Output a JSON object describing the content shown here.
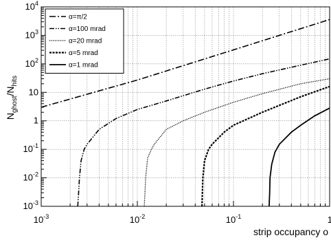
{
  "chart_data": {
    "type": "line",
    "xlabel": "strip occupancy o",
    "ylabel_main": "N",
    "ylabel_sub1": "ghost",
    "ylabel_sep": "/N",
    "ylabel_sub2": "hits",
    "x_scale": "log",
    "y_scale": "log",
    "xlim": [
      0.001,
      1
    ],
    "ylim": [
      0.001,
      10000
    ],
    "grid": true,
    "legend_position": "top-left",
    "x_ticks": [
      {
        "value": 0.001,
        "base": "10",
        "exp": "-3"
      },
      {
        "value": 0.01,
        "base": "10",
        "exp": "-2"
      },
      {
        "value": 0.1,
        "base": "10",
        "exp": "-1"
      },
      {
        "value": 1,
        "base": "1",
        "exp": ""
      }
    ],
    "y_ticks": [
      {
        "value": 10000,
        "base": "10",
        "exp": "4"
      },
      {
        "value": 1000,
        "base": "10",
        "exp": "3"
      },
      {
        "value": 100,
        "base": "10",
        "exp": "2"
      },
      {
        "value": 10,
        "base": "10",
        "exp": ""
      },
      {
        "value": 1,
        "base": "1",
        "exp": ""
      },
      {
        "value": 0.1,
        "base": "10",
        "exp": "-1"
      },
      {
        "value": 0.01,
        "base": "10",
        "exp": "-2"
      },
      {
        "value": 0.001,
        "base": "10",
        "exp": "-3"
      }
    ],
    "series": [
      {
        "name": "α=π/2",
        "style": "dashdot",
        "points": [
          [
            0.001,
            3
          ],
          [
            0.01,
            27
          ],
          [
            0.1,
            310
          ],
          [
            1,
            3600
          ]
        ]
      },
      {
        "name": "α=100 mrad",
        "style": "dashdotdot",
        "points": [
          [
            0.0024,
            0.001
          ],
          [
            0.00245,
            0.003
          ],
          [
            0.0025,
            0.01
          ],
          [
            0.0026,
            0.04
          ],
          [
            0.0028,
            0.1
          ],
          [
            0.003,
            0.15
          ],
          [
            0.004,
            0.5
          ],
          [
            0.006,
            1.2
          ],
          [
            0.01,
            2.5
          ],
          [
            0.02,
            5
          ],
          [
            0.05,
            13
          ],
          [
            0.1,
            25
          ],
          [
            0.2,
            45
          ],
          [
            0.5,
            90
          ],
          [
            1,
            150
          ]
        ]
      },
      {
        "name": "α=20 mrad",
        "style": "dotted",
        "points": [
          [
            0.0118,
            0.001
          ],
          [
            0.012,
            0.003
          ],
          [
            0.0122,
            0.01
          ],
          [
            0.0128,
            0.05
          ],
          [
            0.014,
            0.1
          ],
          [
            0.015,
            0.15
          ],
          [
            0.02,
            0.5
          ],
          [
            0.03,
            1
          ],
          [
            0.05,
            2
          ],
          [
            0.1,
            4.5
          ],
          [
            0.2,
            9
          ],
          [
            0.5,
            20
          ],
          [
            1,
            30
          ]
        ]
      },
      {
        "name": "α=5 mrad",
        "style": "dashed",
        "points": [
          [
            0.047,
            0.001
          ],
          [
            0.0475,
            0.003
          ],
          [
            0.048,
            0.01
          ],
          [
            0.05,
            0.04
          ],
          [
            0.055,
            0.1
          ],
          [
            0.06,
            0.15
          ],
          [
            0.08,
            0.4
          ],
          [
            0.1,
            0.7
          ],
          [
            0.2,
            2
          ],
          [
            0.5,
            7
          ],
          [
            1,
            16
          ]
        ]
      },
      {
        "name": "α=1 mrad",
        "style": "solid",
        "points": [
          [
            0.235,
            0.001
          ],
          [
            0.238,
            0.003
          ],
          [
            0.24,
            0.01
          ],
          [
            0.25,
            0.03
          ],
          [
            0.27,
            0.08
          ],
          [
            0.3,
            0.15
          ],
          [
            0.4,
            0.4
          ],
          [
            0.5,
            0.7
          ],
          [
            0.7,
            1.5
          ],
          [
            1,
            2.8
          ]
        ]
      }
    ]
  }
}
